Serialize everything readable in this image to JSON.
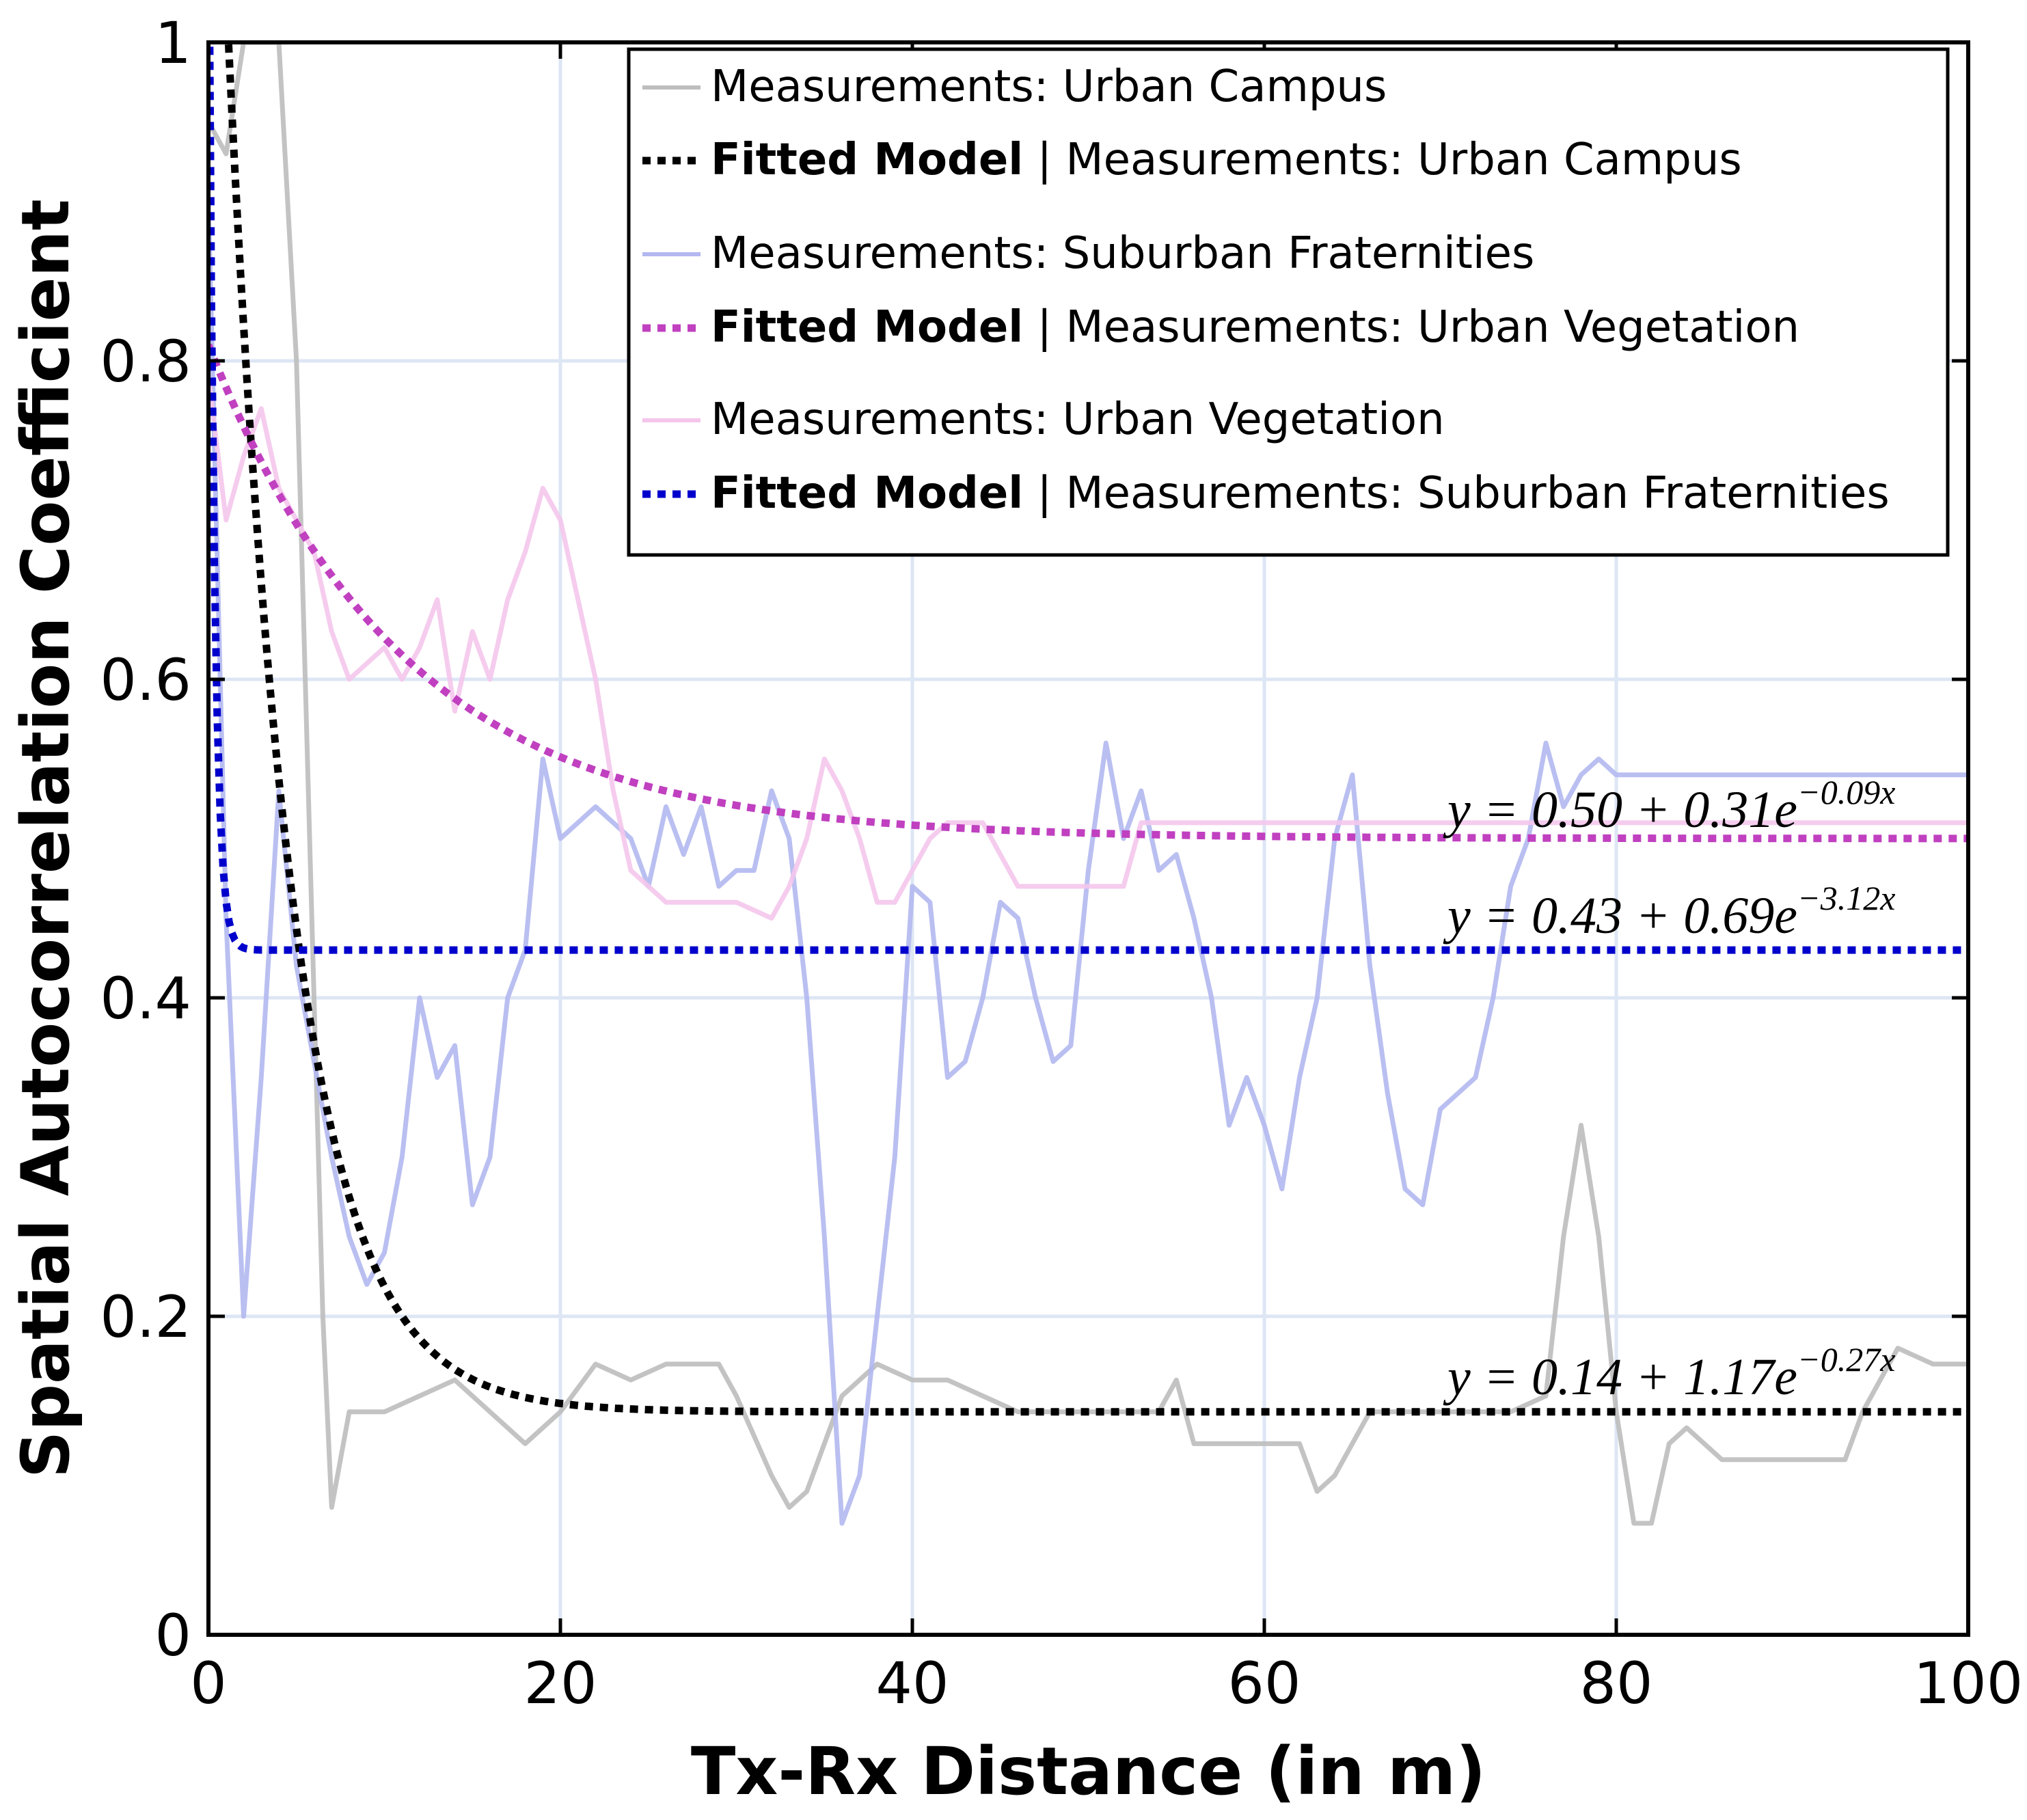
{
  "chart_data": {
    "type": "line",
    "xlabel": "Tx-Rx Distance (in m)",
    "ylabel": "Spatial Autocorrelation Coefficient",
    "xlim": [
      0,
      100
    ],
    "ylim": [
      0,
      1
    ],
    "xticks": [
      "0",
      "20",
      "40",
      "60",
      "80",
      "100"
    ],
    "yticks": [
      "0",
      "0.2",
      "0.4",
      "0.6",
      "0.8",
      "1"
    ],
    "grid": true,
    "legend_position": "top-right",
    "series": [
      {
        "name": "Measurements: Urban Campus",
        "color": "#bdbdbd",
        "style": "solid-thin",
        "x": [
          0,
          1,
          2,
          3,
          4,
          5,
          6,
          6.5,
          7,
          8,
          10,
          12,
          14,
          16,
          18,
          20,
          22,
          24,
          26,
          28,
          29,
          30,
          32,
          33,
          34,
          36,
          38,
          40,
          42,
          44,
          46,
          48,
          50,
          52,
          54,
          55,
          56,
          58,
          60,
          62,
          63,
          64,
          66,
          68,
          70,
          72,
          74,
          76,
          77,
          78,
          79,
          80,
          81,
          82,
          83,
          84,
          86,
          88,
          90,
          92,
          93,
          94,
          96,
          98,
          100
        ],
        "y": [
          0.95,
          0.93,
          1.0,
          1.0,
          1.0,
          0.8,
          0.4,
          0.2,
          0.08,
          0.14,
          0.14,
          0.15,
          0.16,
          0.14,
          0.12,
          0.14,
          0.17,
          0.16,
          0.17,
          0.17,
          0.17,
          0.15,
          0.1,
          0.08,
          0.09,
          0.15,
          0.17,
          0.16,
          0.16,
          0.15,
          0.14,
          0.14,
          0.14,
          0.14,
          0.14,
          0.16,
          0.12,
          0.12,
          0.12,
          0.12,
          0.09,
          0.1,
          0.14,
          0.14,
          0.14,
          0.14,
          0.14,
          0.15,
          0.25,
          0.32,
          0.25,
          0.14,
          0.07,
          0.07,
          0.12,
          0.13,
          0.11,
          0.11,
          0.11,
          0.11,
          0.11,
          0.14,
          0.18,
          0.17,
          0.17
        ]
      },
      {
        "name": "Fitted Model | Measurements: Urban Campus",
        "color": "#000000",
        "style": "dotted",
        "model": {
          "a": 0.14,
          "b": 1.17,
          "k": 0.27
        }
      },
      {
        "name": "Measurements: Suburban Fraternities",
        "color": "#b3b8f0",
        "style": "solid-thin",
        "x": [
          0,
          1,
          2,
          3,
          4,
          5,
          6,
          7,
          8,
          9,
          10,
          11,
          12,
          13,
          14,
          15,
          16,
          17,
          18,
          19,
          20,
          22,
          24,
          25,
          26,
          27,
          28,
          29,
          30,
          31,
          32,
          33,
          34,
          35,
          36,
          37,
          38,
          39,
          40,
          41,
          42,
          43,
          44,
          45,
          46,
          47,
          48,
          49,
          50,
          51,
          52,
          53,
          54,
          55,
          56,
          57,
          58,
          59,
          60,
          61,
          62,
          63,
          64,
          65,
          66,
          67,
          68,
          69,
          70,
          71,
          72,
          73,
          74,
          75,
          76,
          77,
          78,
          79,
          80,
          85,
          90,
          95,
          100
        ],
        "y": [
          0.9,
          0.45,
          0.2,
          0.35,
          0.53,
          0.42,
          0.36,
          0.3,
          0.25,
          0.22,
          0.24,
          0.3,
          0.4,
          0.35,
          0.37,
          0.27,
          0.3,
          0.4,
          0.43,
          0.55,
          0.5,
          0.52,
          0.5,
          0.47,
          0.52,
          0.49,
          0.52,
          0.47,
          0.48,
          0.48,
          0.53,
          0.5,
          0.4,
          0.25,
          0.07,
          0.1,
          0.2,
          0.3,
          0.47,
          0.46,
          0.35,
          0.36,
          0.4,
          0.46,
          0.45,
          0.4,
          0.36,
          0.37,
          0.48,
          0.56,
          0.5,
          0.53,
          0.48,
          0.49,
          0.45,
          0.4,
          0.32,
          0.35,
          0.32,
          0.28,
          0.35,
          0.4,
          0.5,
          0.54,
          0.42,
          0.34,
          0.28,
          0.27,
          0.33,
          0.34,
          0.35,
          0.4,
          0.47,
          0.5,
          0.56,
          0.52,
          0.54,
          0.55,
          0.54,
          0.54,
          0.54,
          0.54,
          0.54
        ]
      },
      {
        "name": "Fitted Model | Measurements: Urban Vegetation",
        "color": "#c040c0",
        "style": "dotted",
        "model": {
          "a": 0.5,
          "b": 0.31,
          "k": 0.09
        }
      },
      {
        "name": "Measurements: Urban Vegetation",
        "color": "#f4c6ec",
        "style": "solid-thin",
        "x": [
          0,
          1,
          2,
          3,
          4,
          5,
          6,
          7,
          8,
          9,
          10,
          11,
          12,
          13,
          14,
          15,
          16,
          17,
          18,
          19,
          20,
          21,
          22,
          23,
          24,
          25,
          26,
          28,
          30,
          32,
          33,
          34,
          35,
          36,
          37,
          38,
          39,
          40,
          41,
          42,
          44,
          46,
          48,
          50,
          52,
          53,
          55,
          60,
          70,
          80,
          90,
          100
        ],
        "y": [
          0.79,
          0.7,
          0.74,
          0.77,
          0.72,
          0.7,
          0.68,
          0.63,
          0.6,
          0.61,
          0.62,
          0.6,
          0.62,
          0.65,
          0.58,
          0.63,
          0.6,
          0.65,
          0.68,
          0.72,
          0.7,
          0.65,
          0.6,
          0.53,
          0.48,
          0.47,
          0.46,
          0.46,
          0.46,
          0.45,
          0.47,
          0.5,
          0.55,
          0.53,
          0.5,
          0.46,
          0.46,
          0.48,
          0.5,
          0.51,
          0.51,
          0.47,
          0.47,
          0.47,
          0.47,
          0.51,
          0.51,
          0.51,
          0.51,
          0.51,
          0.51,
          0.51
        ]
      },
      {
        "name": "Fitted Model | Measurements: Suburban Fraternities",
        "color": "#0000cc",
        "style": "dotted",
        "model": {
          "a": 0.43,
          "b": 0.69,
          "k": 3.12
        }
      }
    ],
    "annotations": [
      {
        "text": "y = 0.50 + 0.31e",
        "sup": "−0.09x",
        "x": 86,
        "y": 0.5
      },
      {
        "text": "y = 0.43 + 0.69e",
        "sup": "−3.12x",
        "x": 86,
        "y": 0.43
      },
      {
        "text": "y = 0.14 + 1.17e",
        "sup": "−0.27x",
        "x": 86,
        "y": 0.14
      }
    ]
  },
  "legend": {
    "entries": [
      {
        "bold": "",
        "text": "Measurements: Urban Campus",
        "color": "#bdbdbd",
        "style": "solid"
      },
      {
        "bold": "Fitted Model",
        "text": " | Measurements: Urban Campus",
        "color": "#000000",
        "style": "dotted"
      },
      {
        "bold": "",
        "text": "Measurements: Suburban Fraternities",
        "color": "#b3b8f0",
        "style": "solid"
      },
      {
        "bold": "Fitted Model",
        "text": " | Measurements: Urban Vegetation",
        "color": "#c040c0",
        "style": "dotted"
      },
      {
        "bold": "",
        "text": "Measurements: Urban Vegetation",
        "color": "#f4c6ec",
        "style": "solid"
      },
      {
        "bold": "Fitted Model",
        "text": " | Measurements: Suburban Fraternities",
        "color": "#0000cc",
        "style": "dotted"
      }
    ]
  }
}
